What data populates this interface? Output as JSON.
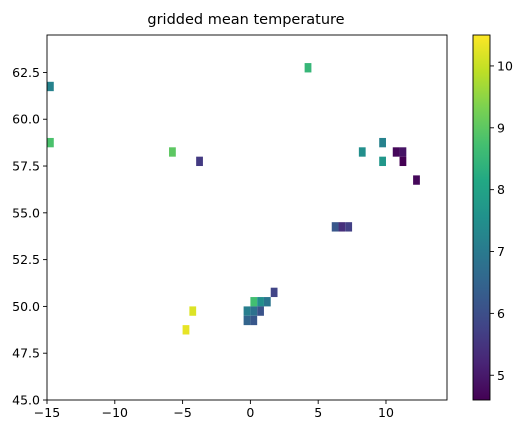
{
  "chart_data": {
    "type": "heatmap",
    "title": "gridded mean temperature",
    "xlabel": "",
    "ylabel": "",
    "xlim": [
      -15,
      14.5
    ],
    "ylim": [
      45,
      64.5
    ],
    "xticks": [
      -15,
      -10,
      -5,
      0,
      5,
      10
    ],
    "xtick_labels": [
      "−15",
      "−10",
      "−5",
      "0",
      "5",
      "10"
    ],
    "yticks": [
      45.0,
      47.5,
      50.0,
      52.5,
      55.0,
      57.5,
      60.0,
      62.5
    ],
    "ytick_labels": [
      "45.0",
      "47.5",
      "50.0",
      "52.5",
      "55.0",
      "57.5",
      "60.0",
      "62.5"
    ],
    "grid": false,
    "cell_size": {
      "dx": 0.5,
      "dy": 0.5
    },
    "colorbar": {
      "cmap": "viridis",
      "vmin": 4.6,
      "vmax": 10.5,
      "ticks": [
        5,
        6,
        7,
        8,
        9,
        10
      ],
      "tick_labels": [
        "5",
        "6",
        "7",
        "8",
        "9",
        "10"
      ]
    },
    "cells": [
      {
        "x": -14.75,
        "y": 61.75,
        "value": 7.2
      },
      {
        "x": -14.75,
        "y": 58.75,
        "value": 8.8
      },
      {
        "x": 4.25,
        "y": 62.75,
        "value": 8.5
      },
      {
        "x": -5.75,
        "y": 58.25,
        "value": 9.0
      },
      {
        "x": -3.75,
        "y": 57.75,
        "value": 5.6
      },
      {
        "x": 9.75,
        "y": 58.75,
        "value": 7.2
      },
      {
        "x": 8.25,
        "y": 58.25,
        "value": 7.5
      },
      {
        "x": 9.75,
        "y": 57.75,
        "value": 7.7
      },
      {
        "x": 10.75,
        "y": 58.25,
        "value": 4.7
      },
      {
        "x": 11.25,
        "y": 58.25,
        "value": 4.9
      },
      {
        "x": 11.25,
        "y": 57.75,
        "value": 4.6
      },
      {
        "x": 12.25,
        "y": 56.75,
        "value": 4.7
      },
      {
        "x": 6.25,
        "y": 54.25,
        "value": 6.2
      },
      {
        "x": 6.75,
        "y": 54.25,
        "value": 5.4
      },
      {
        "x": 7.25,
        "y": 54.25,
        "value": 5.7
      },
      {
        "x": 1.75,
        "y": 50.75,
        "value": 5.8
      },
      {
        "x": 0.25,
        "y": 50.25,
        "value": 8.7
      },
      {
        "x": 0.75,
        "y": 50.25,
        "value": 7.5
      },
      {
        "x": 1.25,
        "y": 50.25,
        "value": 6.9
      },
      {
        "x": -0.25,
        "y": 49.75,
        "value": 7.1
      },
      {
        "x": 0.25,
        "y": 49.75,
        "value": 6.8
      },
      {
        "x": 0.75,
        "y": 49.75,
        "value": 6.1
      },
      {
        "x": -0.25,
        "y": 49.25,
        "value": 6.5
      },
      {
        "x": 0.25,
        "y": 49.25,
        "value": 6.2
      },
      {
        "x": -4.25,
        "y": 49.75,
        "value": 10.2
      },
      {
        "x": -4.75,
        "y": 48.75,
        "value": 10.3
      }
    ]
  }
}
